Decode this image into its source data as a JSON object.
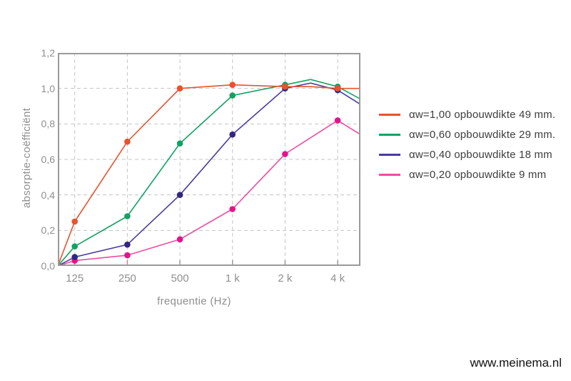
{
  "page": {
    "watermark": "www.meinema.nl"
  },
  "colors": {
    "grid": "#c4c4c4",
    "plot_border": "#9a9a9a",
    "axis_text": "#8f8f8f",
    "legend_text": "#3d3d3d"
  },
  "chart_data": {
    "type": "line",
    "title": "",
    "x_axis": {
      "label": "frequentie (Hz)",
      "scale": "log2",
      "range_hz": [
        100,
        5400
      ],
      "ticks": [
        {
          "f": 125,
          "label": "125"
        },
        {
          "f": 250,
          "label": "250"
        },
        {
          "f": 500,
          "label": "500"
        },
        {
          "f": 1000,
          "label": "1 k"
        },
        {
          "f": 2000,
          "label": "2 k"
        },
        {
          "f": 4000,
          "label": "4 k"
        }
      ]
    },
    "y_axis": {
      "label": "absorptie-coëfficiënt",
      "min": 0,
      "max": 1.2,
      "step": 0.2,
      "tick_labels": [
        "0,0",
        "0,2",
        "0,4",
        "0,6",
        "0,8",
        "1,0",
        "1,2"
      ]
    },
    "grid": true,
    "legend_position": "right",
    "series": [
      {
        "id": "aw100",
        "name": "αw=1,00 opbouwdikte 49 mm.",
        "color": "#e8522d",
        "marker_color": "#e8522d",
        "marker_freqs": [
          125,
          250,
          500,
          1000,
          2000,
          4000
        ],
        "points": [
          [
            100,
            0
          ],
          [
            125,
            0.25
          ],
          [
            250,
            0.7
          ],
          [
            500,
            1.0
          ],
          [
            1000,
            1.02
          ],
          [
            2000,
            1.01
          ],
          [
            2800,
            1.01
          ],
          [
            4000,
            1.0
          ],
          [
            5400,
            1.0
          ]
        ]
      },
      {
        "id": "aw060",
        "name": "αw=0,60 opbouwdikte 29 mm.",
        "color": "#12a263",
        "marker_color": "#12a263",
        "marker_freqs": [
          125,
          250,
          500,
          1000,
          2000,
          4000
        ],
        "points": [
          [
            100,
            0
          ],
          [
            125,
            0.11
          ],
          [
            250,
            0.28
          ],
          [
            500,
            0.69
          ],
          [
            1000,
            0.96
          ],
          [
            2000,
            1.02
          ],
          [
            2800,
            1.05
          ],
          [
            4000,
            1.01
          ],
          [
            5400,
            0.94
          ]
        ]
      },
      {
        "id": "aw040",
        "name": "αw=0,40 opbouwdikte 18 mm",
        "color": "#4b3ba0",
        "marker_color": "#32267f",
        "marker_freqs": [
          125,
          250,
          500,
          1000,
          2000,
          4000
        ],
        "points": [
          [
            100,
            0
          ],
          [
            125,
            0.05
          ],
          [
            250,
            0.12
          ],
          [
            500,
            0.4
          ],
          [
            1000,
            0.74
          ],
          [
            2000,
            1.0
          ],
          [
            2800,
            1.03
          ],
          [
            4000,
            0.99
          ],
          [
            5400,
            0.91
          ]
        ]
      },
      {
        "id": "aw020",
        "name": "αw=0,20 opbouwdikte 9 mm",
        "color": "#ee4ba2",
        "marker_color": "#e5138b",
        "marker_freqs": [
          125,
          250,
          500,
          1000,
          2000,
          4000
        ],
        "points": [
          [
            100,
            0
          ],
          [
            125,
            0.03
          ],
          [
            250,
            0.06
          ],
          [
            500,
            0.15
          ],
          [
            1000,
            0.32
          ],
          [
            2000,
            0.63
          ],
          [
            4000,
            0.82
          ],
          [
            5400,
            0.74
          ]
        ]
      }
    ]
  }
}
